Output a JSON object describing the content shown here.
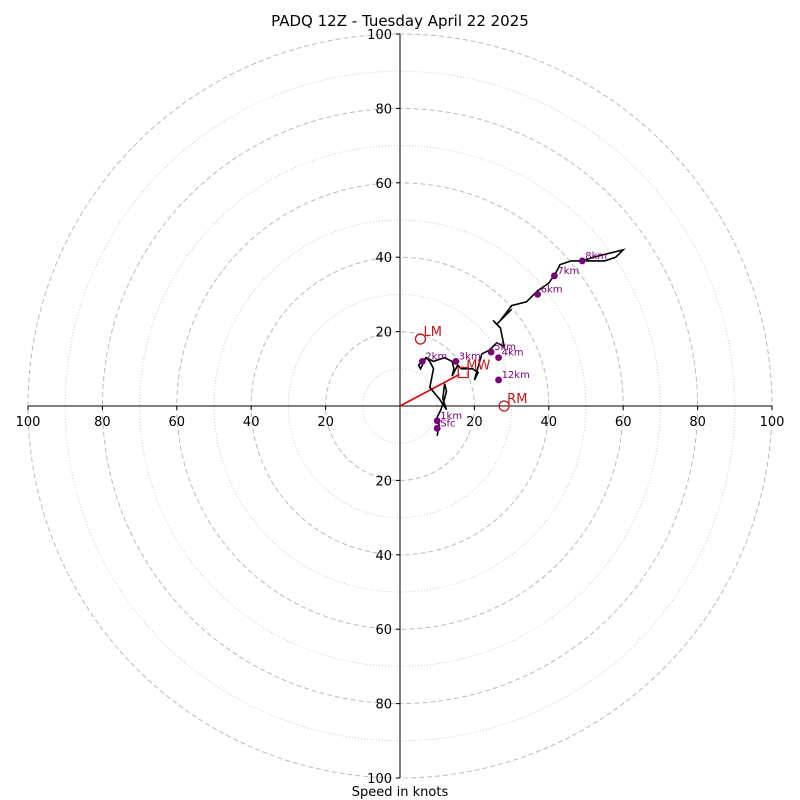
{
  "chart_data": {
    "type": "scatter",
    "title": "PADQ 12Z - Tuesday April 22 2025",
    "xlabel": "Speed in knots",
    "ylabel": "",
    "xlim": [
      -100,
      100
    ],
    "ylim": [
      -100,
      100
    ],
    "rings_major": [
      20,
      40,
      60,
      80,
      100
    ],
    "rings_minor": [
      10,
      30,
      50,
      70,
      90
    ],
    "x_ticks": [
      -100,
      -80,
      -60,
      -40,
      -20,
      20,
      40,
      60,
      80,
      100
    ],
    "x_tick_labels": [
      "100",
      "80",
      "60",
      "40",
      "20",
      "20",
      "40",
      "60",
      "80",
      "100"
    ],
    "y_ticks": [
      100,
      80,
      60,
      40,
      20,
      -20,
      -40,
      -60,
      -80,
      -100
    ],
    "y_tick_labels": [
      "100",
      "80",
      "60",
      "40",
      "20",
      "20",
      "40",
      "60",
      "80",
      "100"
    ],
    "hodograph": {
      "u": [
        10,
        10.5,
        10,
        11,
        12,
        12.5,
        12,
        11.5,
        12.5,
        10.5,
        8,
        9,
        8,
        7,
        6,
        5,
        5.5,
        7,
        9,
        12,
        14,
        14.5,
        14,
        15.5,
        16.5,
        19.5,
        21,
        20,
        22,
        24,
        25,
        26,
        28,
        27,
        25,
        26,
        28,
        30,
        27,
        30,
        34,
        36,
        37,
        40,
        42,
        43,
        46,
        49,
        52,
        56,
        60,
        58,
        55,
        50
      ],
      "v": [
        -8,
        -5,
        -3,
        -1,
        2,
        4,
        6,
        2,
        -1,
        2,
        5,
        10,
        12,
        13,
        12,
        11,
        10,
        13,
        12,
        13,
        12,
        10,
        8,
        11,
        10,
        10,
        9,
        7,
        14,
        15,
        16,
        17,
        16,
        21,
        23,
        22,
        24,
        26,
        23,
        27,
        28,
        30,
        31,
        33,
        36,
        38,
        39,
        39,
        40,
        41,
        42,
        40,
        39,
        39
      ]
    },
    "height_points": [
      {
        "label": "Sfc",
        "u": 10,
        "v": -6
      },
      {
        "label": "1km",
        "u": 10,
        "v": -4
      },
      {
        "label": "2km",
        "u": 6,
        "v": 12
      },
      {
        "label": "3km",
        "u": 15,
        "v": 12
      },
      {
        "label": "4km",
        "u": 26.5,
        "v": 13
      },
      {
        "label": "5km",
        "u": 24.5,
        "v": 14.5
      },
      {
        "label": "6km",
        "u": 37,
        "v": 30
      },
      {
        "label": "7km",
        "u": 41.5,
        "v": 35
      },
      {
        "label": "8km",
        "u": 49,
        "v": 39
      },
      {
        "label": "12km",
        "u": 26.5,
        "v": 7
      }
    ],
    "storm_motions": [
      {
        "label": "LM",
        "u": 5.5,
        "v": 18,
        "marker": "circle"
      },
      {
        "label": "RM",
        "u": 28,
        "v": 0,
        "marker": "circle"
      },
      {
        "label": "MW",
        "u": 17,
        "v": 9,
        "marker": "square"
      }
    ],
    "shear_vector": {
      "u0": 0,
      "v0": 0,
      "u1": 16,
      "v1": 8.5
    }
  }
}
